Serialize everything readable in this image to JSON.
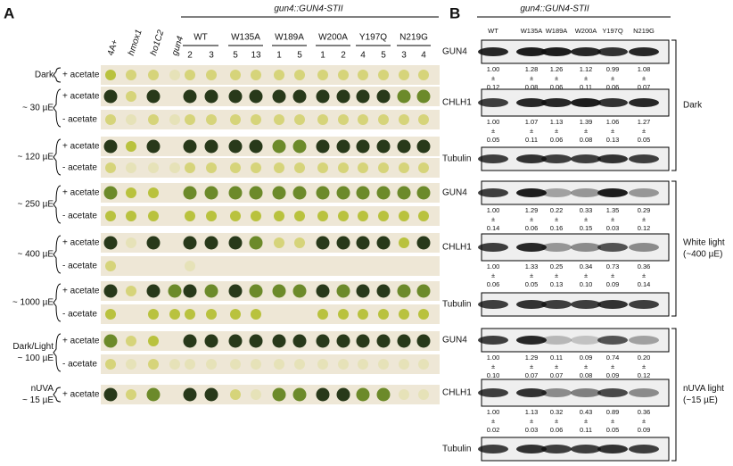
{
  "panel_a": {
    "label": "A",
    "strain_header": "gun4::GUN4-STII",
    "controls": [
      "4A+",
      "hmox1",
      "ho1C2",
      "gun4"
    ],
    "groups": [
      {
        "name": "WT",
        "lines": [
          "2",
          "3"
        ]
      },
      {
        "name": "W135A",
        "lines": [
          "5",
          "13"
        ]
      },
      {
        "name": "W189A",
        "lines": [
          "1",
          "5"
        ]
      },
      {
        "name": "W200A",
        "lines": [
          "1",
          "2"
        ]
      },
      {
        "name": "Y197Q",
        "lines": [
          "4",
          "5"
        ]
      },
      {
        "name": "N219G",
        "lines": [
          "3",
          "4"
        ]
      }
    ],
    "conditions": [
      {
        "label": [
          "Dark"
        ],
        "rows": [
          "+ acetate"
        ]
      },
      {
        "label": [
          "~ 30 µE"
        ],
        "rows": [
          "+ acetate",
          "- acetate"
        ]
      },
      {
        "label": [
          "~ 120 µE"
        ],
        "rows": [
          "+ acetate",
          "- acetate"
        ]
      },
      {
        "label": [
          "~ 250 µE"
        ],
        "rows": [
          "+ acetate",
          "- acetate"
        ]
      },
      {
        "label": [
          "~ 400 µE"
        ],
        "rows": [
          "+ acetate",
          "- acetate"
        ]
      },
      {
        "label": [
          "~ 1000 µE"
        ],
        "rows": [
          "+ acetate",
          "- acetate"
        ]
      },
      {
        "label": [
          "Dark/Light",
          "~ 100 µE"
        ],
        "rows": [
          "+ acetate",
          "- acetate"
        ]
      },
      {
        "label": [
          "nUVA",
          "~ 15 µE"
        ],
        "rows": [
          "+ acetate"
        ]
      }
    ]
  },
  "panel_b": {
    "label": "B",
    "strain_header": "gun4::GUN4-STII",
    "pm": "±",
    "lanes": [
      "WT",
      "W135A",
      "W189A",
      "W200A",
      "Y197Q",
      "N219G"
    ],
    "sections": [
      {
        "name": [
          "Dark"
        ],
        "blots": [
          {
            "label": "GUN4",
            "means": [
              "1.00",
              "1.28",
              "1.26",
              "1.12",
              "0.99",
              "1.08"
            ],
            "sds": [
              "0.12",
              "0.08",
              "0.06",
              "0.11",
              "0.06",
              "0.07"
            ]
          },
          {
            "label": "CHLH1",
            "means": [
              "1.00",
              "1.07",
              "1.13",
              "1.39",
              "1.06",
              "1.27"
            ],
            "sds": [
              "0.05",
              "0.11",
              "0.06",
              "0.08",
              "0.13",
              "0.05"
            ]
          },
          {
            "label": "Tubulin"
          }
        ]
      },
      {
        "name": [
          "White light",
          "(~400 µE)"
        ],
        "blots": [
          {
            "label": "GUN4",
            "means": [
              "1.00",
              "1.29",
              "0.22",
              "0.33",
              "1.35",
              "0.29"
            ],
            "sds": [
              "0.14",
              "0.06",
              "0.16",
              "0.15",
              "0.03",
              "0.12"
            ]
          },
          {
            "label": "CHLH1",
            "means": [
              "1.00",
              "1.33",
              "0.25",
              "0.34",
              "0.73",
              "0.36"
            ],
            "sds": [
              "0.06",
              "0.05",
              "0.13",
              "0.10",
              "0.09",
              "0.14"
            ]
          },
          {
            "label": "Tubulin"
          }
        ]
      },
      {
        "name": [
          "nUVA light",
          "(~15 µE)"
        ],
        "blots": [
          {
            "label": "GUN4",
            "means": [
              "1.00",
              "1.29",
              "0.11",
              "0.09",
              "0.74",
              "0.20"
            ],
            "sds": [
              "0.10",
              "0.07",
              "0.07",
              "0.08",
              "0.09",
              "0.12"
            ]
          },
          {
            "label": "CHLH1",
            "means": [
              "1.00",
              "1.13",
              "0.32",
              "0.43",
              "0.89",
              "0.36"
            ],
            "sds": [
              "0.02",
              "0.03",
              "0.06",
              "0.11",
              "0.05",
              "0.09"
            ]
          },
          {
            "label": "Tubulin"
          }
        ]
      }
    ]
  }
}
